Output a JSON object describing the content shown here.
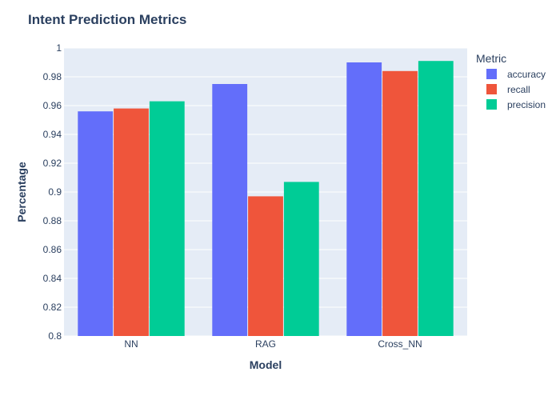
{
  "chart_data": {
    "type": "bar",
    "title": "Intent Prediction Metrics",
    "xlabel": "Model",
    "ylabel": "Percentage",
    "categories": [
      "NN",
      "RAG",
      "Cross_NN"
    ],
    "series": [
      {
        "name": "accuracy",
        "color": "#636efa",
        "values": [
          0.956,
          0.975,
          0.99
        ]
      },
      {
        "name": "recall",
        "color": "#ef553b",
        "values": [
          0.958,
          0.897,
          0.984
        ]
      },
      {
        "name": "precision",
        "color": "#00cc96",
        "values": [
          0.963,
          0.907,
          0.991
        ]
      }
    ],
    "ylim": [
      0.8,
      1
    ],
    "yticks": [
      0.8,
      0.82,
      0.84,
      0.86,
      0.88,
      0.9,
      0.92,
      0.94,
      0.96,
      0.98,
      1
    ],
    "ytick_labels": [
      "0.8",
      "0.82",
      "0.84",
      "0.86",
      "0.88",
      "0.9",
      "0.92",
      "0.94",
      "0.96",
      "0.98",
      "1"
    ],
    "grid": true,
    "legend": {
      "title": "Metric",
      "placement": "right"
    },
    "colors": {
      "plot_background": "#e5ecf6",
      "grid": "#ffffff",
      "text": "#2a3f5f"
    }
  }
}
